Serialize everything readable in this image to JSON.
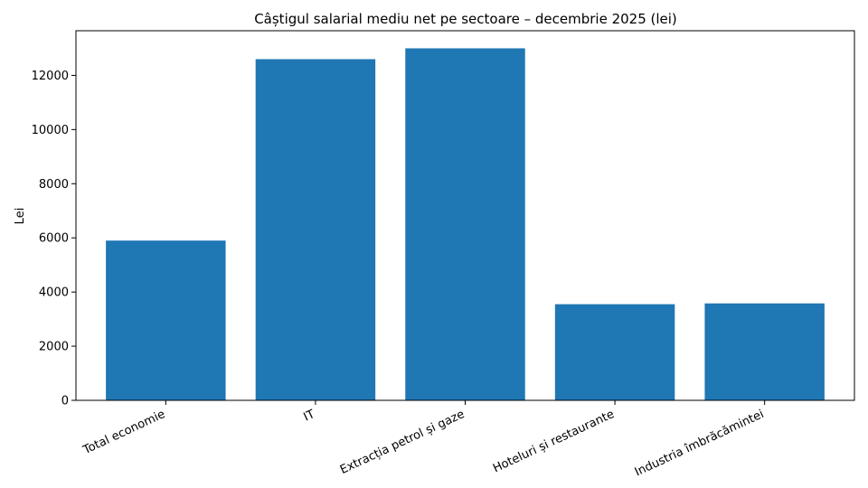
{
  "chart_data": {
    "type": "bar",
    "title": "Câștigul salarial mediu net pe sectoare – decembrie 2025 (lei)",
    "xlabel": "",
    "ylabel": "Lei",
    "categories": [
      "Total economie",
      "IT",
      "Extracția petrol și gaze",
      "Hoteluri și restaurante",
      "Industria îmbrăcămintei"
    ],
    "values": [
      5900,
      12600,
      13000,
      3550,
      3580
    ],
    "ylim": [
      0,
      13650
    ],
    "yticks": [
      0,
      2000,
      4000,
      6000,
      8000,
      10000,
      12000
    ],
    "ytick_labels": [
      "0",
      "2000",
      "4000",
      "6000",
      "8000",
      "10000",
      "12000"
    ],
    "bar_color": "#1f77b4",
    "grid": false,
    "legend": "none"
  }
}
